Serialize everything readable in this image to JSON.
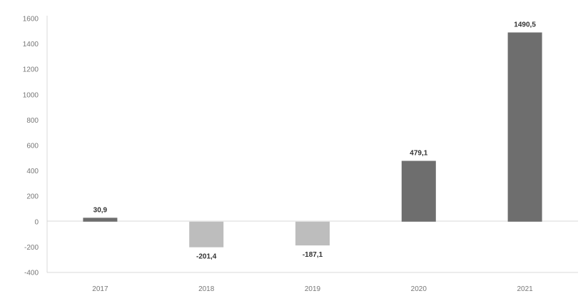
{
  "chart_data": {
    "type": "bar",
    "categories": [
      "2017",
      "2018",
      "2019",
      "2020",
      "2021"
    ],
    "values": [
      30.9,
      -201.4,
      -187.1,
      479.1,
      1490.5
    ],
    "value_labels": [
      "30,9",
      "-201,4",
      "-187,1",
      "479,1",
      "1490,5"
    ],
    "bar_colors": [
      "#6e6e6e",
      "#bdbdbd",
      "#bdbdbd",
      "#6e6e6e",
      "#6e6e6e"
    ],
    "ylim": [
      -400,
      1600
    ],
    "yticks": [
      1600,
      1400,
      1200,
      1000,
      800,
      600,
      400,
      200,
      0,
      -200,
      -400
    ],
    "ytick_labels": [
      "1600",
      "1400",
      "1200",
      "1000",
      "800",
      "600",
      "400",
      "200",
      "0",
      "-200",
      "-400"
    ],
    "grid": false,
    "title": "",
    "xlabel": "",
    "ylabel": ""
  }
}
